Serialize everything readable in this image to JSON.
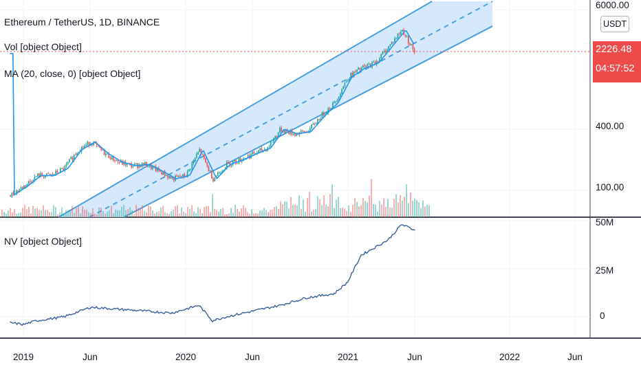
{
  "header": {
    "symbol_line": "Ethereum / TetherUS, 1D, BINANCE",
    "vol_legend": "Vol [object Object]",
    "ma_legend": "MA (20, close, 0) [object Object]",
    "nv_legend": "NV [object Object]"
  },
  "price_axis": {
    "currency": "USDT",
    "last_price": "2226.48",
    "countdown": "04:57:52",
    "ticks": [
      "6000.00",
      "400.00",
      "100.00"
    ]
  },
  "nv_axis": {
    "ticks": [
      "50M",
      "25M",
      "0"
    ]
  },
  "time_axis": {
    "ticks": [
      "2019",
      "Jun",
      "2020",
      "Jun",
      "2021",
      "Jun",
      "2022",
      "Jun"
    ]
  },
  "colors": {
    "up": "#26a69a",
    "down": "#ef5350",
    "ma": "#2196f3",
    "channel": "#4a9fe0",
    "channel_fill": "#cfe5fb",
    "nv_line": "#3b5fa0",
    "price_badge": "#f04b4b"
  },
  "chart_data": [
    {
      "type": "line",
      "series": [
        {
          "name": "Ethereum / TetherUS, 1D, BINANCE",
          "x": [
            "2018-12",
            "2019-01",
            "2019-02",
            "2019-03",
            "2019-04",
            "2019-05",
            "2019-06",
            "2019-07",
            "2019-08",
            "2019-09",
            "2019-10",
            "2019-11",
            "2019-12",
            "2020-01",
            "2020-02",
            "2020-03",
            "2020-04",
            "2020-05",
            "2020-06",
            "2020-07",
            "2020-08",
            "2020-09",
            "2020-10",
            "2020-11",
            "2020-12",
            "2021-01",
            "2021-02",
            "2021-03",
            "2021-04",
            "2021-05",
            "2021-06"
          ],
          "values": [
            90,
            110,
            140,
            140,
            165,
            250,
            300,
            230,
            190,
            175,
            180,
            155,
            130,
            140,
            250,
            130,
            180,
            200,
            230,
            260,
            400,
            360,
            380,
            540,
            730,
            1300,
            1600,
            1800,
            2600,
            3800,
            2226
          ]
        }
      ],
      "y_scale": "log",
      "ylim": [
        50,
        6500
      ],
      "yticks": [
        100,
        400,
        6000
      ],
      "xlim": [
        "2018-12",
        "2022-08"
      ],
      "annotations": [
        "ascending parallel channel with dashed median line",
        "MA (20, close, 0) overlay",
        "volume histogram"
      ]
    },
    {
      "type": "line",
      "series": [
        {
          "name": "NV",
          "x": [
            "2018-12",
            "2019-01",
            "2019-02",
            "2019-04",
            "2019-06",
            "2019-08",
            "2019-10",
            "2019-12",
            "2020-02",
            "2020-03",
            "2020-04",
            "2020-06",
            "2020-08",
            "2020-10",
            "2020-12",
            "2021-01",
            "2021-02",
            "2021-04",
            "2021-05",
            "2021-06"
          ],
          "values": [
            -3,
            -4,
            -2,
            0,
            5,
            4,
            3,
            2,
            6,
            -2,
            0,
            3,
            6,
            10,
            12,
            18,
            32,
            40,
            48,
            45
          ]
        }
      ],
      "ylim": [
        -10,
        52
      ],
      "yticks": [
        0,
        25,
        50
      ],
      "unit": "M"
    }
  ]
}
